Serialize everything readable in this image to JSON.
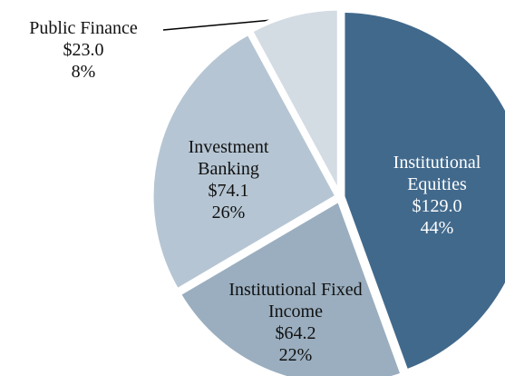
{
  "chart_data": {
    "type": "pie",
    "categories": [
      "Institutional Equities",
      "Institutional Fixed Income",
      "Investment Banking",
      "Public Finance"
    ],
    "values": [
      129.0,
      64.2,
      74.1,
      23.0
    ],
    "value_labels": [
      "$129.0",
      "$64.2",
      "$74.1",
      "$23.0"
    ],
    "percents": [
      44,
      22,
      26,
      8
    ],
    "percent_labels": [
      "44%",
      "22%",
      "26%",
      "8%"
    ],
    "colors": [
      "#41698c",
      "#9aaebf",
      "#b5c5d3",
      "#d3dbe3"
    ]
  }
}
